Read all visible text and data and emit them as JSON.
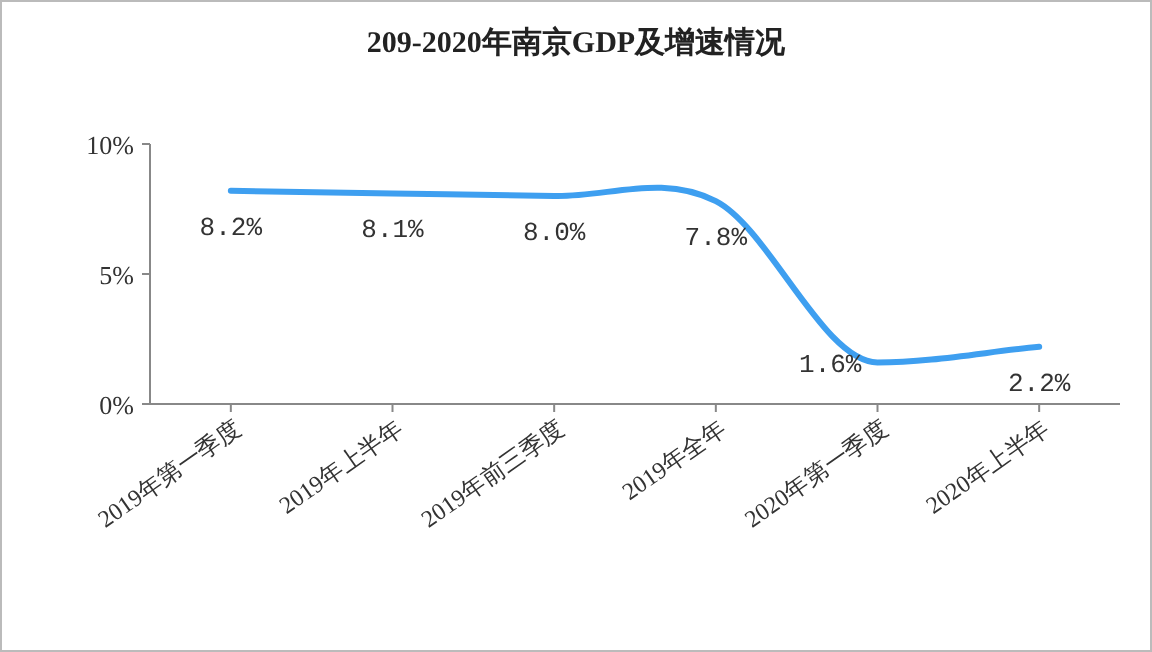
{
  "chart_data": {
    "type": "line",
    "title": "209-2020年南京GDP及增速情况",
    "categories": [
      "2019年第一季度",
      "2019年上半年",
      "2019年前三季度",
      "2019年全年",
      "2020年第一季度",
      "2020年上半年"
    ],
    "series": [
      {
        "color": "#3e9ff0",
        "values": [
          8.2,
          8.1,
          8.0,
          7.8,
          1.6,
          2.2
        ],
        "value_labels": [
          "8.2%",
          "8.1%",
          "8.0%",
          "7.8%",
          "1.6%",
          "2.2%"
        ]
      }
    ],
    "ylim": [
      0,
      10
    ],
    "yticks": [
      {
        "value": 0,
        "label": "0%"
      },
      {
        "value": 5,
        "label": "5%"
      },
      {
        "value": 10,
        "label": "10%"
      }
    ],
    "grid": false,
    "marker": "none",
    "line_style": "solid"
  }
}
